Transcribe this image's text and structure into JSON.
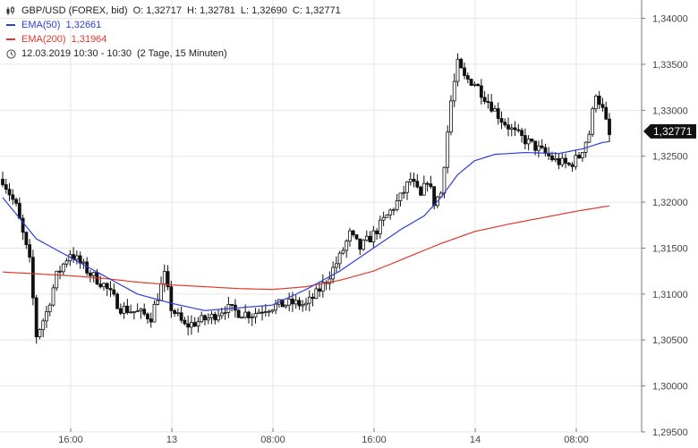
{
  "legend": {
    "symbol": "GBP/USD (FOREX, bid)",
    "open_label": "O:",
    "open": "1,32717",
    "high_label": "H:",
    "high": "1,32781",
    "low_label": "L:",
    "low": "1,32690",
    "close_label": "C:",
    "close": "1,32771",
    "ema50_label": "EMA(50)",
    "ema50_value": "1,32661",
    "ema200_label": "EMA(200)",
    "ema200_value": "1,31964",
    "range_text": "12.03.2019 10:30 - 10:30",
    "period_text": "(2 Tage, 15 Minuten)",
    "icons": {
      "chart": "candlestick-icon",
      "clock": "clock-icon"
    }
  },
  "chart_data": {
    "type": "candlestick",
    "ylim": [
      1.295,
      1.342
    ],
    "y_ticks": [
      {
        "value": 1.34,
        "label": "1,34000"
      },
      {
        "value": 1.335,
        "label": "1,33500"
      },
      {
        "value": 1.33,
        "label": "1,33000"
      },
      {
        "value": 1.325,
        "label": "1,32500"
      },
      {
        "value": 1.32,
        "label": "1,32000"
      },
      {
        "value": 1.315,
        "label": "1,31500"
      },
      {
        "value": 1.31,
        "label": "1,31000"
      },
      {
        "value": 1.305,
        "label": "1,30500"
      },
      {
        "value": 1.3,
        "label": "1,30000"
      },
      {
        "value": 1.295,
        "label": "1,29500"
      }
    ],
    "x_ticks": [
      "16:00",
      "13",
      "08:00",
      "16:00",
      "14",
      "08:00"
    ],
    "last_value": 1.32771,
    "last_label": "1,32771",
    "colors": {
      "candle": "#111111",
      "ema50": "#2c3fd6",
      "ema200": "#e0392b",
      "grid": "#e6e6e6",
      "last_bg": "#111111"
    },
    "close_path": [
      [
        0,
        1.3225
      ],
      [
        4,
        1.3195
      ],
      [
        8,
        1.3135
      ],
      [
        10,
        1.3055
      ],
      [
        13,
        1.308
      ],
      [
        16,
        1.312
      ],
      [
        20,
        1.3145
      ],
      [
        26,
        1.3122
      ],
      [
        30,
        1.311
      ],
      [
        35,
        1.3085
      ],
      [
        40,
        1.308
      ],
      [
        44,
        1.3075
      ],
      [
        48,
        1.312
      ],
      [
        50,
        1.3085
      ],
      [
        54,
        1.3065
      ],
      [
        58,
        1.307
      ],
      [
        62,
        1.3075
      ],
      [
        66,
        1.3085
      ],
      [
        70,
        1.308
      ],
      [
        74,
        1.3078
      ],
      [
        78,
        1.3085
      ],
      [
        82,
        1.3088
      ],
      [
        86,
        1.309
      ],
      [
        90,
        1.3088
      ],
      [
        93,
        1.31
      ],
      [
        96,
        1.3115
      ],
      [
        100,
        1.314
      ],
      [
        103,
        1.3165
      ],
      [
        106,
        1.315
      ],
      [
        110,
        1.3165
      ],
      [
        114,
        1.3185
      ],
      [
        118,
        1.3205
      ],
      [
        121,
        1.3225
      ],
      [
        124,
        1.3205
      ],
      [
        126,
        1.3225
      ],
      [
        128,
        1.32
      ],
      [
        130,
        1.321
      ],
      [
        133,
        1.331
      ],
      [
        135,
        1.335
      ],
      [
        137,
        1.3335
      ],
      [
        140,
        1.333
      ],
      [
        144,
        1.331
      ],
      [
        148,
        1.329
      ],
      [
        152,
        1.3275
      ],
      [
        156,
        1.3265
      ],
      [
        160,
        1.3255
      ],
      [
        164,
        1.3245
      ],
      [
        168,
        1.324
      ],
      [
        171,
        1.325
      ],
      [
        174,
        1.3275
      ],
      [
        176,
        1.332
      ],
      [
        178,
        1.33
      ],
      [
        180,
        1.3272
      ]
    ],
    "ema50_path": [
      [
        0,
        1.3205
      ],
      [
        10,
        1.316
      ],
      [
        20,
        1.314
      ],
      [
        30,
        1.312
      ],
      [
        40,
        1.31
      ],
      [
        50,
        1.309
      ],
      [
        60,
        1.3082
      ],
      [
        70,
        1.3085
      ],
      [
        80,
        1.3088
      ],
      [
        90,
        1.3105
      ],
      [
        100,
        1.3125
      ],
      [
        110,
        1.315
      ],
      [
        118,
        1.317
      ],
      [
        125,
        1.3185
      ],
      [
        130,
        1.3205
      ],
      [
        135,
        1.323
      ],
      [
        140,
        1.3245
      ],
      [
        146,
        1.3252
      ],
      [
        155,
        1.3254
      ],
      [
        165,
        1.3253
      ],
      [
        172,
        1.3258
      ],
      [
        178,
        1.3265
      ],
      [
        180,
        1.3266
      ]
    ],
    "ema200_path": [
      [
        0,
        1.3124
      ],
      [
        10,
        1.3122
      ],
      [
        20,
        1.312
      ],
      [
        30,
        1.3117
      ],
      [
        40,
        1.3113
      ],
      [
        50,
        1.311
      ],
      [
        60,
        1.3108
      ],
      [
        70,
        1.3106
      ],
      [
        80,
        1.3105
      ],
      [
        90,
        1.3108
      ],
      [
        100,
        1.3115
      ],
      [
        110,
        1.3125
      ],
      [
        120,
        1.314
      ],
      [
        130,
        1.3155
      ],
      [
        140,
        1.3168
      ],
      [
        150,
        1.3176
      ],
      [
        160,
        1.3183
      ],
      [
        170,
        1.319
      ],
      [
        180,
        1.3196
      ]
    ]
  }
}
